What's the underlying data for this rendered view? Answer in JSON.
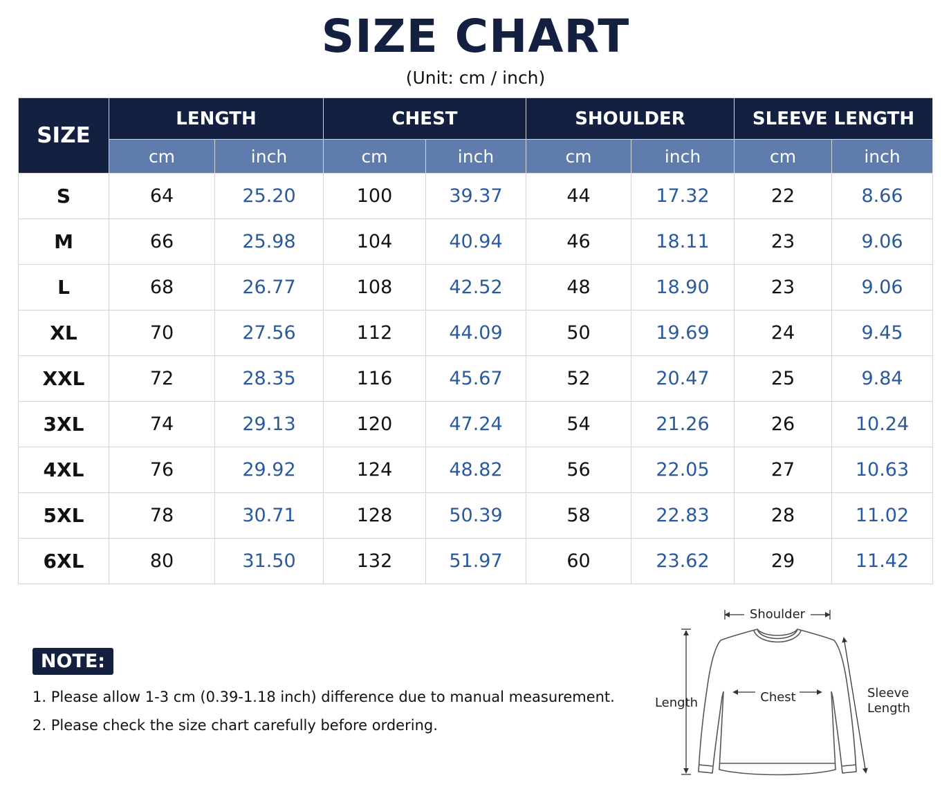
{
  "title": "SIZE CHART",
  "subtitle": "(Unit: cm / inch)",
  "table": {
    "size_header": "SIZE",
    "groups": [
      "LENGTH",
      "CHEST",
      "SHOULDER",
      "SLEEVE LENGTH"
    ],
    "units": [
      "cm",
      "inch",
      "cm",
      "inch",
      "cm",
      "inch",
      "cm",
      "inch"
    ],
    "rows": [
      [
        "S",
        "64",
        "25.20",
        "100",
        "39.37",
        "44",
        "17.32",
        "22",
        "8.66"
      ],
      [
        "M",
        "66",
        "25.98",
        "104",
        "40.94",
        "46",
        "18.11",
        "23",
        "9.06"
      ],
      [
        "L",
        "68",
        "26.77",
        "108",
        "42.52",
        "48",
        "18.90",
        "23",
        "9.06"
      ],
      [
        "XL",
        "70",
        "27.56",
        "112",
        "44.09",
        "50",
        "19.69",
        "24",
        "9.45"
      ],
      [
        "XXL",
        "72",
        "28.35",
        "116",
        "45.67",
        "52",
        "20.47",
        "25",
        "9.84"
      ],
      [
        "3XL",
        "74",
        "29.13",
        "120",
        "47.24",
        "54",
        "21.26",
        "26",
        "10.24"
      ],
      [
        "4XL",
        "76",
        "29.92",
        "124",
        "48.82",
        "56",
        "22.05",
        "27",
        "10.63"
      ],
      [
        "5XL",
        "78",
        "30.71",
        "128",
        "50.39",
        "58",
        "22.83",
        "28",
        "11.02"
      ],
      [
        "6XL",
        "80",
        "31.50",
        "132",
        "51.97",
        "60",
        "23.62",
        "29",
        "11.42"
      ]
    ]
  },
  "note": {
    "label": "NOTE:",
    "items": [
      "1.  Please allow 1-3 cm (0.39-1.18 inch) difference due to manual measurement.",
      "2. Please check the size chart carefully before ordering."
    ]
  },
  "diagram": {
    "shoulder": "Shoulder",
    "length": "Length",
    "chest": "Chest",
    "sleeve_line1": "Sleeve",
    "sleeve_line2": "Length"
  },
  "colors": {
    "header_navy": "#13203f",
    "unit_blue": "#5f7cad",
    "inch_text_blue": "#2a5a9c"
  }
}
